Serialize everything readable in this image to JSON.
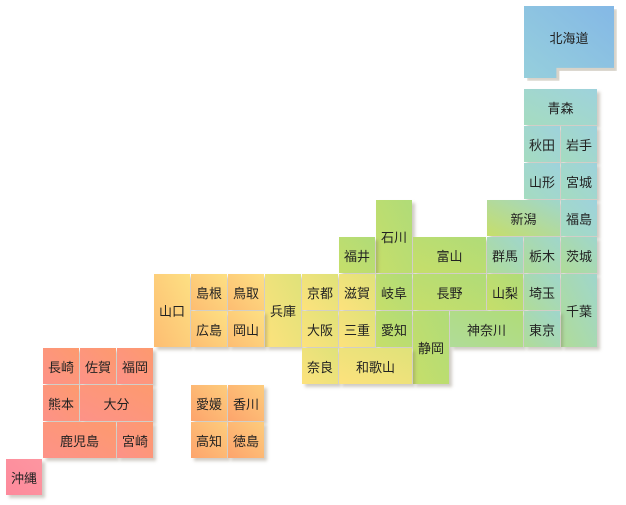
{
  "region_colors": {
    "hokkaido": [
      "#96cfdc",
      "#84b8e6"
    ],
    "tohoku": [
      "#a5dcc0",
      "#9ed2dc"
    ],
    "kanto": [
      "#b0dc98",
      "#9fd6cc"
    ],
    "chubu": [
      "#c6de6a",
      "#b0dc78"
    ],
    "kinki": [
      "#fde27c",
      "#dfe27a"
    ],
    "chugoku": [
      "#fdbd72",
      "#fde083"
    ],
    "shikoku": [
      "#fda46c",
      "#fdcc7c"
    ],
    "kyushu": [
      "#fd9288",
      "#fd9a6e"
    ],
    "okinawa": [
      "#fd8a9c",
      "#fd96a0"
    ]
  },
  "prefectures": [
    {
      "name": "北海道",
      "region": "hokkaido",
      "col": 14,
      "row": 0,
      "cs": 2.45,
      "rs": 2
    },
    {
      "name": "青森",
      "region": "tohoku",
      "col": 14,
      "row": 1,
      "cs": 2,
      "rs": 1
    },
    {
      "name": "秋田",
      "region": "tohoku",
      "col": 14,
      "row": 2,
      "cs": 1,
      "rs": 1
    },
    {
      "name": "岩手",
      "region": "tohoku",
      "col": 15,
      "row": 2,
      "cs": 1,
      "rs": 1
    },
    {
      "name": "山形",
      "region": "tohoku",
      "col": 14,
      "row": 3,
      "cs": 1,
      "rs": 1
    },
    {
      "name": "宮城",
      "region": "tohoku",
      "col": 15,
      "row": 3,
      "cs": 1,
      "rs": 1
    },
    {
      "name": "新潟",
      "region": "chubu",
      "col": 13,
      "row": 4,
      "cs": 2,
      "rs": 1,
      "tint": "kanto"
    },
    {
      "name": "福島",
      "region": "tohoku",
      "col": 15,
      "row": 4,
      "cs": 1,
      "rs": 1
    },
    {
      "name": "石川",
      "region": "chubu",
      "col": 10,
      "row": 4,
      "cs": 1,
      "rs": 2
    },
    {
      "name": "福井",
      "region": "chubu",
      "col": 9,
      "row": 5,
      "cs": 1,
      "rs": 1
    },
    {
      "name": "富山",
      "region": "chubu",
      "col": 11,
      "row": 5,
      "cs": 2,
      "rs": 1
    },
    {
      "name": "群馬",
      "region": "kanto",
      "col": 13,
      "row": 5,
      "cs": 1,
      "rs": 1
    },
    {
      "name": "栃木",
      "region": "kanto",
      "col": 14,
      "row": 5,
      "cs": 1,
      "rs": 1
    },
    {
      "name": "茨城",
      "region": "kanto",
      "col": 15,
      "row": 5,
      "cs": 1,
      "rs": 1
    },
    {
      "name": "山口",
      "region": "chugoku",
      "col": 4,
      "row": 6,
      "cs": 1,
      "rs": 2
    },
    {
      "name": "島根",
      "region": "chugoku",
      "col": 5,
      "row": 6,
      "cs": 1,
      "rs": 1
    },
    {
      "name": "鳥取",
      "region": "chugoku",
      "col": 6,
      "row": 6,
      "cs": 1,
      "rs": 1
    },
    {
      "name": "兵庫",
      "region": "kinki",
      "col": 7,
      "row": 6,
      "cs": 1,
      "rs": 2
    },
    {
      "name": "京都",
      "region": "kinki",
      "col": 8,
      "row": 6,
      "cs": 1,
      "rs": 1
    },
    {
      "name": "滋賀",
      "region": "kinki",
      "col": 9,
      "row": 6,
      "cs": 1,
      "rs": 1
    },
    {
      "name": "岐阜",
      "region": "chubu",
      "col": 10,
      "row": 6,
      "cs": 1,
      "rs": 1
    },
    {
      "name": "長野",
      "region": "chubu",
      "col": 11,
      "row": 6,
      "cs": 2,
      "rs": 1
    },
    {
      "name": "山梨",
      "region": "chubu",
      "col": 13,
      "row": 6,
      "cs": 1,
      "rs": 1
    },
    {
      "name": "埼玉",
      "region": "kanto",
      "col": 14,
      "row": 6,
      "cs": 1,
      "rs": 1
    },
    {
      "name": "千葉",
      "region": "kanto",
      "col": 15,
      "row": 6,
      "cs": 1,
      "rs": 2
    },
    {
      "name": "広島",
      "region": "chugoku",
      "col": 5,
      "row": 7,
      "cs": 1,
      "rs": 1
    },
    {
      "name": "岡山",
      "region": "chugoku",
      "col": 6,
      "row": 7,
      "cs": 1,
      "rs": 1
    },
    {
      "name": "大阪",
      "region": "kinki",
      "col": 8,
      "row": 7,
      "cs": 1,
      "rs": 1
    },
    {
      "name": "三重",
      "region": "kinki",
      "col": 9,
      "row": 7,
      "cs": 1,
      "rs": 1
    },
    {
      "name": "愛知",
      "region": "chubu",
      "col": 10,
      "row": 7,
      "cs": 1,
      "rs": 1
    },
    {
      "name": "静岡",
      "region": "chubu",
      "col": 11,
      "row": 7,
      "cs": 1,
      "rs": 2
    },
    {
      "name": "神奈川",
      "region": "kanto",
      "col": 12,
      "row": 7,
      "cs": 2,
      "rs": 1,
      "tint": "chubu"
    },
    {
      "name": "東京",
      "region": "kanto",
      "col": 14,
      "row": 7,
      "cs": 1,
      "rs": 1
    },
    {
      "name": "長崎",
      "region": "kyushu",
      "col": 1,
      "row": 8,
      "cs": 1,
      "rs": 1
    },
    {
      "name": "佐賀",
      "region": "kyushu",
      "col": 2,
      "row": 8,
      "cs": 1,
      "rs": 1
    },
    {
      "name": "福岡",
      "region": "kyushu",
      "col": 3,
      "row": 8,
      "cs": 1,
      "rs": 1
    },
    {
      "name": "奈良",
      "region": "kinki",
      "col": 8,
      "row": 8,
      "cs": 1,
      "rs": 1
    },
    {
      "name": "和歌山",
      "region": "kinki",
      "col": 9,
      "row": 8,
      "cs": 2,
      "rs": 1
    },
    {
      "name": "熊本",
      "region": "kyushu",
      "col": 1,
      "row": 9,
      "cs": 1,
      "rs": 1
    },
    {
      "name": "大分",
      "region": "kyushu",
      "col": 2,
      "row": 9,
      "cs": 2,
      "rs": 1
    },
    {
      "name": "愛媛",
      "region": "shikoku",
      "col": 5,
      "row": 9,
      "cs": 1,
      "rs": 1
    },
    {
      "name": "香川",
      "region": "shikoku",
      "col": 6,
      "row": 9,
      "cs": 1,
      "rs": 1
    },
    {
      "name": "鹿児島",
      "region": "kyushu",
      "col": 1,
      "row": 10,
      "cs": 2,
      "rs": 1
    },
    {
      "name": "宮崎",
      "region": "kyushu",
      "col": 3,
      "row": 10,
      "cs": 1,
      "rs": 1
    },
    {
      "name": "高知",
      "region": "shikoku",
      "col": 5,
      "row": 10,
      "cs": 1,
      "rs": 1
    },
    {
      "name": "徳島",
      "region": "shikoku",
      "col": 6,
      "row": 10,
      "cs": 1,
      "rs": 1
    },
    {
      "name": "沖縄",
      "region": "okinawa",
      "col": 0,
      "row": 11,
      "cs": 1,
      "rs": 1
    }
  ]
}
